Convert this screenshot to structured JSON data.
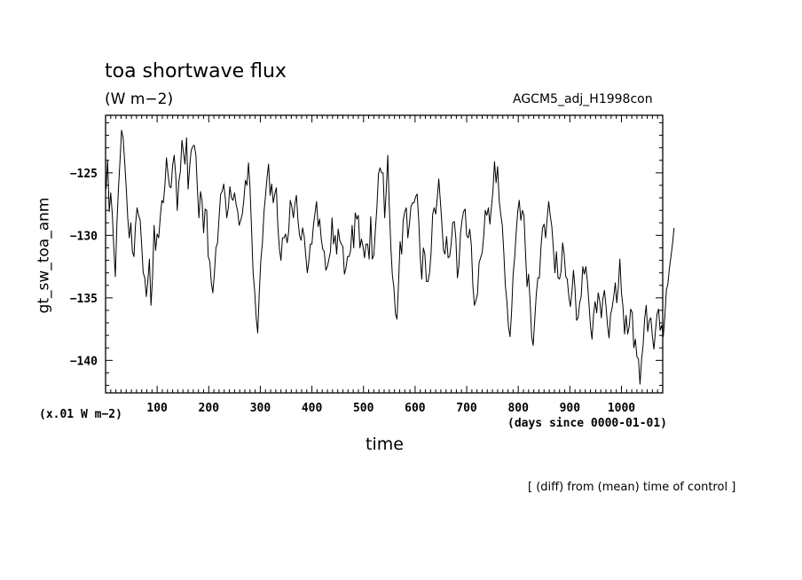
{
  "header": {
    "title": "toa shortwave flux",
    "units": "(W m−2)",
    "run_name": "AGCM5_adj_H1998con"
  },
  "footer": {
    "scale_note": "(x.01 W m−2)",
    "x_units": "(days since 0000-01-01)",
    "note": "[ (diff) from (mean) time of control ]"
  },
  "chart_data": {
    "type": "line",
    "title": "toa shortwave flux",
    "xlabel": "time",
    "ylabel": "gt_sw_toa_anm",
    "xlim": [
      0,
      1080
    ],
    "ylim": [
      -142.6,
      -120.4
    ],
    "x_ticks": [
      100,
      200,
      300,
      400,
      500,
      600,
      700,
      800,
      900,
      1000
    ],
    "y_ticks": [
      -125,
      -130,
      -135,
      -140
    ],
    "x_tick_labels": [
      "100",
      "200",
      "300",
      "400",
      "500",
      "600",
      "700",
      "800",
      "900",
      "1000"
    ],
    "y_tick_labels": [
      "−125",
      "−130",
      "−135",
      "−140"
    ],
    "grid": false,
    "series": [
      {
        "name": "",
        "x_step": 3,
        "values": [
          -126.3,
          -124.0,
          -128.1,
          -126.6,
          -128.3,
          -131.0,
          -133.3,
          -129.0,
          -126.3,
          -124.0,
          -121.6,
          -122.2,
          -124.1,
          -126.2,
          -128.6,
          -130.2,
          -129.0,
          -131.3,
          -131.7,
          -129.2,
          -127.8,
          -128.4,
          -128.8,
          -130.8,
          -133.0,
          -133.4,
          -134.9,
          -133.6,
          -131.9,
          -135.6,
          -133.4,
          -129.2,
          -131.2,
          -129.9,
          -130.2,
          -128.6,
          -127.2,
          -127.4,
          -126.0,
          -123.8,
          -125.1,
          -126.1,
          -126.2,
          -124.4,
          -123.6,
          -125.2,
          -128.0,
          -125.7,
          -124.9,
          -122.4,
          -123.4,
          -124.3,
          -122.2,
          -126.3,
          -124.5,
          -123.2,
          -122.9,
          -122.8,
          -123.6,
          -126.3,
          -128.6,
          -126.5,
          -127.2,
          -129.8,
          -127.9,
          -128.0,
          -131.7,
          -132.1,
          -133.8,
          -134.6,
          -133.0,
          -131.0,
          -130.6,
          -128.6,
          -126.7,
          -126.5,
          -125.9,
          -127.0,
          -128.6,
          -127.8,
          -126.1,
          -127.0,
          -127.2,
          -126.6,
          -127.5,
          -128.1,
          -129.2,
          -128.8,
          -128.3,
          -127.2,
          -125.6,
          -126.0,
          -124.2,
          -126.2,
          -129.6,
          -133.0,
          -134.4,
          -136.6,
          -137.8,
          -134.5,
          -132.0,
          -130.6,
          -128.2,
          -126.8,
          -125.4,
          -124.3,
          -126.8,
          -125.9,
          -127.4,
          -126.7,
          -126.2,
          -129.3,
          -131.1,
          -132.0,
          -130.2,
          -130.2,
          -129.9,
          -130.6,
          -129.7,
          -127.2,
          -127.7,
          -128.6,
          -127.5,
          -126.8,
          -128.8,
          -130.0,
          -130.4,
          -129.4,
          -130.1,
          -131.6,
          -133.0,
          -132.1,
          -130.7,
          -130.7,
          -129.2,
          -128.2,
          -127.3,
          -129.3,
          -128.7,
          -130.3,
          -131.1,
          -131.3,
          -132.8,
          -132.5,
          -131.9,
          -131.3,
          -128.6,
          -130.7,
          -130.0,
          -131.5,
          -129.5,
          -130.4,
          -130.7,
          -130.9,
          -133.1,
          -132.6,
          -131.7,
          -131.7,
          -131.2,
          -129.2,
          -131.0,
          -128.2,
          -128.7,
          -128.4,
          -131.0,
          -130.3,
          -130.9,
          -131.8,
          -130.7,
          -130.7,
          -131.9,
          -128.5,
          -131.9,
          -131.6,
          -129.6,
          -127.7,
          -125.1,
          -124.6,
          -125.0,
          -125.0,
          -128.6,
          -126.5,
          -123.6,
          -127.7,
          -131.0,
          -133.2,
          -134.2,
          -136.3,
          -136.7,
          -133.7,
          -130.5,
          -131.5,
          -128.8,
          -128.1,
          -127.8,
          -130.2,
          -129.1,
          -127.7,
          -127.4,
          -127.4,
          -126.9,
          -126.7,
          -128.8,
          -131.8,
          -133.5,
          -131.0,
          -131.5,
          -133.7,
          -133.7,
          -133.0,
          -131.4,
          -128.3,
          -127.8,
          -128.3,
          -127.0,
          -125.5,
          -127.3,
          -129.1,
          -131.2,
          -131.5,
          -130.1,
          -131.8,
          -131.7,
          -130.7,
          -129.0,
          -128.9,
          -130.2,
          -133.4,
          -132.4,
          -129.8,
          -128.8,
          -128.1,
          -127.9,
          -130.0,
          -130.2,
          -129.5,
          -130.8,
          -134.0,
          -135.6,
          -135.2,
          -134.7,
          -132.2,
          -131.8,
          -131.4,
          -130.1,
          -128.0,
          -128.4,
          -127.8,
          -129.1,
          -127.8,
          -126.4,
          -124.1,
          -125.8,
          -124.5,
          -127.2,
          -128.3,
          -129.2,
          -131.4,
          -134.0,
          -135.3,
          -137.3,
          -138.1,
          -136.2,
          -133.1,
          -131.8,
          -129.7,
          -128.1,
          -127.2,
          -128.8,
          -128.0,
          -128.4,
          -131.3,
          -134.1,
          -133.1,
          -135.4,
          -138.1,
          -138.8,
          -136.7,
          -134.7,
          -133.4,
          -133.4,
          -130.9,
          -129.4,
          -129.1,
          -130.2,
          -128.7,
          -127.3,
          -128.4,
          -129.3,
          -131.0,
          -133.0,
          -131.3,
          -133.4,
          -133.5,
          -132.9,
          -130.6,
          -131.5,
          -133.3,
          -133.5,
          -134.9,
          -135.7,
          -134.5,
          -132.8,
          -134.2,
          -136.8,
          -136.6,
          -135.4,
          -134.9,
          -132.5,
          -133.1,
          -132.5,
          -133.7,
          -135.4,
          -137.3,
          -138.3,
          -136.3,
          -135.3,
          -136.2,
          -134.6,
          -135.3,
          -136.6,
          -135.1,
          -134.4,
          -135.6,
          -137.2,
          -138.2,
          -136.3,
          -135.8,
          -134.9,
          -133.8,
          -135.4,
          -134.1,
          -131.9,
          -134.6,
          -135.7,
          -137.9,
          -136.4,
          -137.9,
          -137.3,
          -135.9,
          -136.2,
          -139.0,
          -138.3,
          -139.7,
          -139.9,
          -141.9,
          -139.9,
          -138.8,
          -136.7,
          -135.6,
          -137.7,
          -136.8,
          -136.6,
          -138.1,
          -139.1,
          -137.6,
          -136.3,
          -135.9,
          -137.6,
          -137.2,
          -138.1,
          -136.6,
          -134.4,
          -133.9,
          -132.6,
          -131.7,
          -130.7,
          -129.4
        ]
      }
    ]
  }
}
